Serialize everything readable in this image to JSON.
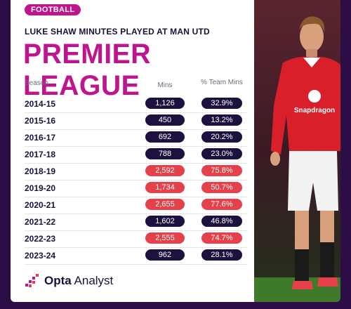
{
  "badge": "FOOTBALL",
  "subtitle": "LUKE SHAW MINUTES PLAYED AT MAN UTD",
  "title": "PREMIER LEAGUE",
  "brand": {
    "name_bold": "Opta",
    "name_regular": " Analyst"
  },
  "colors": {
    "low": "#1e1140",
    "high": "#e5414b",
    "accent": "#c0148f"
  },
  "sponsor_text": "Snapdragon",
  "chart_data": {
    "type": "table",
    "columns": [
      "Season",
      "Mins",
      "% Team Mins"
    ],
    "rows": [
      {
        "season": "2014-15",
        "mins": "1,126",
        "pct": "32.9%",
        "highlight": false
      },
      {
        "season": "2015-16",
        "mins": "450",
        "pct": "13.2%",
        "highlight": false
      },
      {
        "season": "2016-17",
        "mins": "692",
        "pct": "20.2%",
        "highlight": false
      },
      {
        "season": "2017-18",
        "mins": "788",
        "pct": "23.0%",
        "highlight": false
      },
      {
        "season": "2018-19",
        "mins": "2,592",
        "pct": "75.8%",
        "highlight": true
      },
      {
        "season": "2019-20",
        "mins": "1,734",
        "pct": "50.7%",
        "highlight": true
      },
      {
        "season": "2020-21",
        "mins": "2,655",
        "pct": "77.6%",
        "highlight": true
      },
      {
        "season": "2021-22",
        "mins": "1,602",
        "pct": "46.8%",
        "highlight": false
      },
      {
        "season": "2022-23",
        "mins": "2,555",
        "pct": "74.7%",
        "highlight": true
      },
      {
        "season": "2023-24",
        "mins": "962",
        "pct": "28.1%",
        "highlight": false
      }
    ]
  }
}
